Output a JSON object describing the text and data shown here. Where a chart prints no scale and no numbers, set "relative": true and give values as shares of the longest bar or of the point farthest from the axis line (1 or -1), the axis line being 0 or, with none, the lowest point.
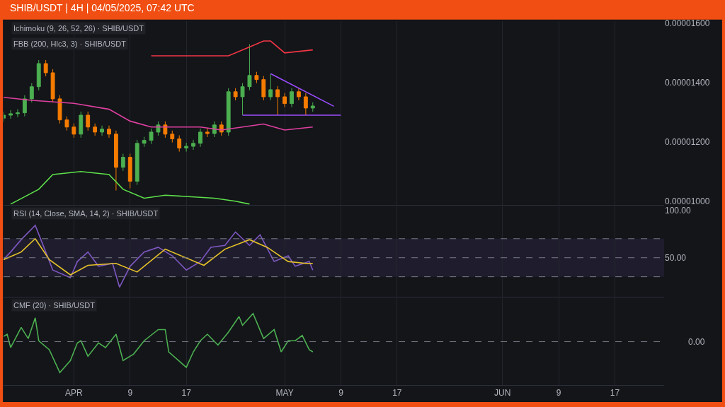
{
  "chart_data": [
    {
      "type": "candlestick",
      "title": "SHIB/USDT | 4H | 04/05/2025, 07:42 UTC",
      "annotations": [
        "Ichimoku (9, 26, 52, 26) · SHIB/USDT",
        "FBB (200, Hlc3, 3) · SHIB/USDT"
      ],
      "x": [
        "2025-03-22",
        "2025-03-23",
        "2025-03-24",
        "2025-03-25",
        "2025-03-26",
        "2025-03-27",
        "2025-03-28",
        "2025-03-29",
        "2025-03-30",
        "2025-03-31",
        "2025-04-01",
        "2025-04-02",
        "2025-04-03",
        "2025-04-04",
        "2025-04-05",
        "2025-04-06",
        "2025-04-07",
        "2025-04-08",
        "2025-04-09",
        "2025-04-10",
        "2025-04-11",
        "2025-04-12",
        "2025-04-13",
        "2025-04-14",
        "2025-04-15",
        "2025-04-16",
        "2025-04-17",
        "2025-04-18",
        "2025-04-19",
        "2025-04-20",
        "2025-04-21",
        "2025-04-22",
        "2025-04-23",
        "2025-04-24",
        "2025-04-25",
        "2025-04-26",
        "2025-04-27",
        "2025-04-28",
        "2025-04-29",
        "2025-04-30",
        "2025-05-01",
        "2025-05-02",
        "2025-05-03",
        "2025-05-04",
        "2025-05-05"
      ],
      "ohlc": [
        [
          1.28e-05,
          1.302e-05,
          1.268e-05,
          1.29e-05
        ],
        [
          1.29e-05,
          1.307e-05,
          1.278e-05,
          1.295e-05
        ],
        [
          1.295e-05,
          1.31e-05,
          1.283e-05,
          1.298e-05
        ],
        [
          1.298e-05,
          1.357e-05,
          1.286e-05,
          1.345e-05
        ],
        [
          1.345e-05,
          1.398e-05,
          1.333e-05,
          1.386e-05
        ],
        [
          1.386e-05,
          1.476e-05,
          1.374e-05,
          1.464e-05
        ],
        [
          1.464e-05,
          1.476e-05,
          1.421e-05,
          1.433e-05
        ],
        [
          1.433e-05,
          1.445e-05,
          1.333e-05,
          1.345e-05
        ],
        [
          1.345e-05,
          1.357e-05,
          1.262e-05,
          1.274e-05
        ],
        [
          1.274e-05,
          1.286e-05,
          1.238e-05,
          1.25e-05
        ],
        [
          1.25e-05,
          1.262e-05,
          1.214e-05,
          1.226e-05
        ],
        [
          1.226e-05,
          1.302e-05,
          1.214e-05,
          1.29e-05
        ],
        [
          1.29e-05,
          1.302e-05,
          1.238e-05,
          1.25e-05
        ],
        [
          1.25e-05,
          1.262e-05,
          1.221e-05,
          1.233e-05
        ],
        [
          1.233e-05,
          1.255e-05,
          1.221e-05,
          1.243e-05
        ],
        [
          1.243e-05,
          1.255e-05,
          1.214e-05,
          1.226e-05
        ],
        [
          1.226e-05,
          1.238e-05,
          1.036e-05,
          1.114e-05
        ],
        [
          1.114e-05,
          1.16e-05,
          1.102e-05,
          1.148e-05
        ],
        [
          1.148e-05,
          1.16e-05,
          1.043e-05,
          1.067e-05
        ],
        [
          1.067e-05,
          1.207e-05,
          1.055e-05,
          1.195e-05
        ],
        [
          1.195e-05,
          1.217e-05,
          1.183e-05,
          1.205e-05
        ],
        [
          1.205e-05,
          1.245e-05,
          1.193e-05,
          1.233e-05
        ],
        [
          1.233e-05,
          1.269e-05,
          1.221e-05,
          1.257e-05
        ],
        [
          1.257e-05,
          1.269e-05,
          1.214e-05,
          1.226e-05
        ],
        [
          1.226e-05,
          1.238e-05,
          1.198e-05,
          1.21e-05
        ],
        [
          1.21e-05,
          1.222e-05,
          1.167e-05,
          1.179e-05
        ],
        [
          1.179e-05,
          1.197e-05,
          1.167e-05,
          1.185e-05
        ],
        [
          1.185e-05,
          1.207e-05,
          1.173e-05,
          1.195e-05
        ],
        [
          1.195e-05,
          1.245e-05,
          1.183e-05,
          1.233e-05
        ],
        [
          1.233e-05,
          1.245e-05,
          1.216e-05,
          1.228e-05
        ],
        [
          1.228e-05,
          1.269e-05,
          1.216e-05,
          1.257e-05
        ],
        [
          1.257e-05,
          1.269e-05,
          1.221e-05,
          1.233e-05
        ],
        [
          1.233e-05,
          1.381e-05,
          1.221e-05,
          1.369e-05
        ],
        [
          1.369e-05,
          1.381e-05,
          1.34e-05,
          1.352e-05
        ],
        [
          1.352e-05,
          1.398e-05,
          1.29e-05,
          1.386e-05
        ],
        [
          1.386e-05,
          1.529e-05,
          1.374e-05,
          1.424e-05
        ],
        [
          1.424e-05,
          1.436e-05,
          1.398e-05,
          1.41e-05
        ],
        [
          1.41e-05,
          1.422e-05,
          1.34e-05,
          1.352e-05
        ],
        [
          1.352e-05,
          1.429e-05,
          1.34e-05,
          1.376e-05
        ],
        [
          1.376e-05,
          1.388e-05,
          1.29e-05,
          1.352e-05
        ],
        [
          1.352e-05,
          1.364e-05,
          1.317e-05,
          1.329e-05
        ],
        [
          1.329e-05,
          1.381e-05,
          1.317e-05,
          1.369e-05
        ],
        [
          1.369e-05,
          1.381e-05,
          1.34e-05,
          1.352e-05
        ],
        [
          1.352e-05,
          1.364e-05,
          1.29e-05,
          1.314e-05
        ],
        [
          1.314e-05,
          1.333e-05,
          1.302e-05,
          1.321e-05
        ]
      ],
      "series": [
        {
          "type": "line",
          "color": "#f23645",
          "x": [
            "2025-04-12",
            "2025-04-23",
            "2025-04-26",
            "2025-04-28",
            "2025-04-29",
            "2025-05-01",
            "2025-05-05"
          ],
          "values": [
            1.49e-05,
            1.49e-05,
            1.52e-05,
            1.54e-05,
            1.54e-05,
            1.5e-05,
            1.51e-05
          ]
        },
        {
          "type": "line",
          "color": "#e040a0",
          "x": [
            "2025-03-22",
            "2025-03-26",
            "2025-04-01",
            "2025-04-06",
            "2025-04-09",
            "2025-04-12",
            "2025-04-19",
            "2025-04-22",
            "2025-04-28",
            "2025-05-01",
            "2025-05-05"
          ],
          "values": [
            1.35e-05,
            1.34e-05,
            1.33e-05,
            1.31e-05,
            1.27e-05,
            1.25e-05,
            1.25e-05,
            1.24e-05,
            1.26e-05,
            1.24e-05,
            1.25e-05
          ]
        },
        {
          "type": "line",
          "color": "#5ee04a",
          "x": [
            "2025-03-23",
            "2025-03-27",
            "2025-03-29",
            "2025-04-02",
            "2025-04-06",
            "2025-04-08",
            "2025-04-11",
            "2025-04-14",
            "2025-04-21",
            "2025-04-24",
            "2025-04-26"
          ],
          "values": [
            9.9e-06,
            1.04e-05,
            1.09e-05,
            1.1e-05,
            1.09e-05,
            1.04e-05,
            1.01e-05,
            1.02e-05,
            1.01e-05,
            1e-05,
            9.9e-06
          ]
        },
        {
          "type": "line",
          "color": "#9c4dff",
          "x": [
            "2025-04-29",
            "2025-05-08"
          ],
          "values": [
            1.43e-05,
            1.32e-05
          ]
        },
        {
          "type": "line",
          "color": "#9c4dff",
          "x": [
            "2025-04-25",
            "2025-05-09"
          ],
          "values": [
            1.29e-05,
            1.29e-05
          ]
        }
      ],
      "xlim": [
        "2025-03-22",
        "2025-06-24"
      ],
      "xticks": [
        {
          "value": "2025-04-01",
          "label": null
        },
        {
          "value": "2025-04-09",
          "label": null
        },
        {
          "value": "2025-04-17",
          "label": null
        },
        {
          "value": "2025-05-01",
          "label": null
        },
        {
          "value": "2025-05-09",
          "label": null
        },
        {
          "value": "2025-05-17",
          "label": null
        },
        {
          "value": "2025-06-01",
          "label": null
        },
        {
          "value": "2025-06-09",
          "label": null
        },
        {
          "value": "2025-06-17",
          "label": null
        }
      ],
      "ylim": [
        9.88e-06,
        1.607e-05
      ],
      "yticks": [
        {
          "value": 1e-05,
          "label": "0.00001000"
        },
        {
          "value": 1.2e-05,
          "label": "0.00001200"
        },
        {
          "value": 1.4e-05,
          "label": "0.00001400"
        },
        {
          "value": 1.6e-05,
          "label": "0.00001600"
        }
      ],
      "tick_labels": "y",
      "grid": "x"
    },
    {
      "type": "line",
      "title": "RSI (14, Close, SMA, 14, 2) · SHIB/USDT",
      "series": [
        {
          "color": "#7e57c2",
          "x": [
            "2025-03-22T00:00",
            "2025-03-23T00:00",
            "2025-03-24T12:00",
            "2025-03-26T12:00",
            "2025-03-28T00:00",
            "2025-03-29T00:00",
            "2025-03-31T12:00",
            "2025-04-01T12:00",
            "2025-04-03T00:00",
            "2025-04-04T12:00",
            "2025-04-06T12:00",
            "2025-04-07T12:00",
            "2025-04-09T00:00",
            "2025-04-11T00:00",
            "2025-04-13T00:00",
            "2025-04-15T00:00",
            "2025-04-17T00:00",
            "2025-04-19T00:00",
            "2025-04-20T12:00",
            "2025-04-22T12:00",
            "2025-04-24T00:00",
            "2025-04-26T00:00",
            "2025-04-27T12:00",
            "2025-04-29T12:00",
            "2025-05-01T12:00",
            "2025-05-02T12:00",
            "2025-05-04T12:00",
            "2025-05-05T00:00"
          ],
          "values": [
            48,
            56,
            69,
            84,
            56,
            37,
            29,
            46,
            56,
            41,
            44,
            19,
            41,
            56,
            61,
            52,
            37,
            46,
            61,
            63,
            77,
            63,
            74,
            46,
            52,
            41,
            46,
            37
          ]
        },
        {
          "color": "#e6c229",
          "x": [
            "2025-03-22T00:00",
            "2025-03-24T12:00",
            "2025-03-26T12:00",
            "2025-03-28T12:00",
            "2025-03-31T12:00",
            "2025-04-03T00:00",
            "2025-04-07T00:00",
            "2025-04-10T00:00",
            "2025-04-14T00:00",
            "2025-04-19T12:00",
            "2025-04-22T12:00",
            "2025-04-26T00:00",
            "2025-04-28T12:00",
            "2025-05-01T12:00",
            "2025-05-04T00:00",
            "2025-05-05T00:00"
          ],
          "values": [
            48,
            56,
            70,
            48,
            32,
            42,
            44,
            35,
            59,
            42,
            59,
            69,
            61,
            46,
            44,
            44
          ]
        }
      ],
      "xlim": [
        "2025-03-22",
        "2025-06-24"
      ],
      "xticks": [
        {
          "value": "2025-04-01",
          "label": null
        },
        {
          "value": "2025-04-09",
          "label": null
        },
        {
          "value": "2025-04-17",
          "label": null
        },
        {
          "value": "2025-05-01",
          "label": null
        },
        {
          "value": "2025-05-09",
          "label": null
        },
        {
          "value": "2025-05-17",
          "label": null
        },
        {
          "value": "2025-06-01",
          "label": null
        },
        {
          "value": "2025-06-09",
          "label": null
        },
        {
          "value": "2025-06-17",
          "label": null
        }
      ],
      "ylim": [
        9,
        104
      ],
      "yticks": [
        {
          "value": 50,
          "label": "50.00"
        },
        {
          "value": 100,
          "label": "100.00"
        }
      ],
      "ref_lines": [
        {
          "axis": "y",
          "value": 70,
          "color": "#787b86",
          "line_style": "dashed"
        },
        {
          "axis": "y",
          "value": 50,
          "color": "#787b86",
          "line_style": "dashed"
        },
        {
          "axis": "y",
          "value": 30,
          "color": "#787b86",
          "line_style": "dashed"
        }
      ],
      "bands": [
        {
          "axis": "y",
          "from": 30,
          "to": 70,
          "color": "#7e57c2"
        }
      ],
      "tick_labels": "y",
      "grid": "x"
    },
    {
      "type": "line",
      "title": "CMF (20) · SHIB/USDT",
      "relative": true,
      "series": [
        {
          "color": "#4caf50",
          "x": [
            "2025-03-22T00:00",
            "2025-03-22T12:00",
            "2025-03-23T00:00",
            "2025-03-24T12:00",
            "2025-03-25T12:00",
            "2025-03-26T12:00",
            "2025-03-27T00:00",
            "2025-03-28T12:00",
            "2025-03-30T00:00",
            "2025-03-31T12:00",
            "2025-04-01T12:00",
            "2025-04-02T00:00",
            "2025-04-03T00:00",
            "2025-04-04T12:00",
            "2025-04-05T12:00",
            "2025-04-07T00:00",
            "2025-04-08T00:00",
            "2025-04-09T12:00",
            "2025-04-11T00:00",
            "2025-04-13T00:00",
            "2025-04-14T00:00",
            "2025-04-14T12:00",
            "2025-04-17T00:00",
            "2025-04-18T00:00",
            "2025-04-19T00:00",
            "2025-04-20T00:00",
            "2025-04-21T12:00",
            "2025-04-23T00:00",
            "2025-04-24T12:00",
            "2025-04-25T00:00",
            "2025-04-26T12:00",
            "2025-04-28T00:00",
            "2025-04-29T12:00",
            "2025-04-30T12:00",
            "2025-05-01T12:00",
            "2025-05-02T12:00",
            "2025-05-03T12:00",
            "2025-05-04T12:00",
            "2025-05-05T00:00"
          ],
          "values": [
            0.17,
            0.24,
            -0.19,
            0.46,
            0.1,
            0.77,
            0.03,
            -0.26,
            -1,
            -0.61,
            -0.04,
            0.03,
            -0.47,
            -0.04,
            -0.19,
            0.24,
            -0.61,
            -0.4,
            0.03,
            0.39,
            0.39,
            -0.33,
            -0.83,
            -0.33,
            0.03,
            0.24,
            -0.11,
            0.31,
            0.81,
            0.53,
            0.91,
            0.1,
            0.39,
            -0.33,
            0.03,
            0.03,
            0.2,
            -0.26,
            -0.33
          ]
        }
      ],
      "xlim": [
        "2025-03-22",
        "2025-06-24"
      ],
      "xticks": [
        {
          "value": "2025-04-01",
          "label": "APR"
        },
        {
          "value": "2025-04-09",
          "label": "9"
        },
        {
          "value": "2025-04-17",
          "label": "17"
        },
        {
          "value": "2025-05-01",
          "label": "MAY"
        },
        {
          "value": "2025-05-09",
          "label": "9"
        },
        {
          "value": "2025-05-17",
          "label": "17"
        },
        {
          "value": "2025-06-01",
          "label": "JUN"
        },
        {
          "value": "2025-06-09",
          "label": "9"
        },
        {
          "value": "2025-06-17",
          "label": "17"
        }
      ],
      "ref_lines": [
        {
          "axis": "y",
          "value": 0,
          "label": "0.00",
          "color": "#787b86",
          "line_style": "dashed"
        }
      ],
      "grid": "x"
    }
  ]
}
